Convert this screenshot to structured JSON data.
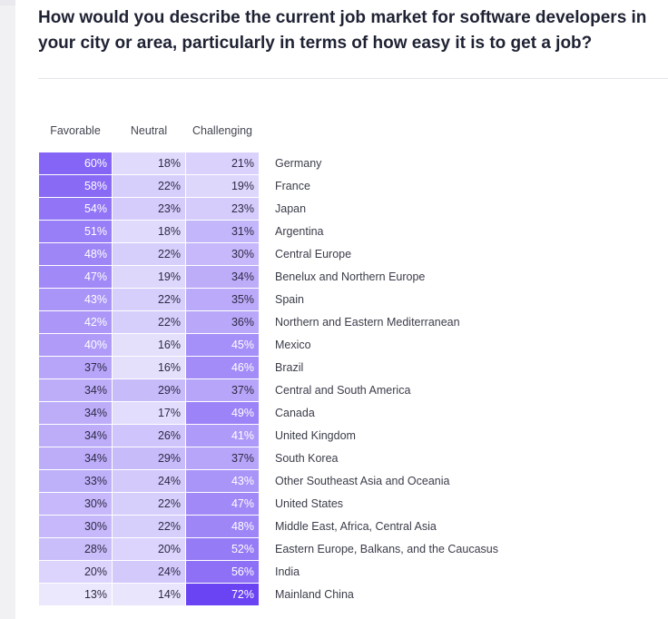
{
  "title": "How would you describe the current job market for software developers in your city or area, particularly in terms of how easy it is to get a job?",
  "colors": {
    "base": "#ebe8fd",
    "full": "#6a43f3"
  },
  "chart_data": {
    "type": "table",
    "columns": [
      "Favorable",
      "Neutral",
      "Challenging"
    ],
    "unit": "%",
    "rows": [
      {
        "country": "Germany",
        "values": [
          60,
          18,
          21
        ]
      },
      {
        "country": "France",
        "values": [
          58,
          22,
          19
        ]
      },
      {
        "country": "Japan",
        "values": [
          54,
          23,
          23
        ]
      },
      {
        "country": "Argentina",
        "values": [
          51,
          18,
          31
        ]
      },
      {
        "country": "Central Europe",
        "values": [
          48,
          22,
          30
        ]
      },
      {
        "country": "Benelux and Northern Europe",
        "values": [
          47,
          19,
          34
        ]
      },
      {
        "country": "Spain",
        "values": [
          43,
          22,
          35
        ]
      },
      {
        "country": "Northern and Eastern Mediterranean",
        "values": [
          42,
          22,
          36
        ]
      },
      {
        "country": "Mexico",
        "values": [
          40,
          16,
          45
        ]
      },
      {
        "country": "Brazil",
        "values": [
          37,
          16,
          46
        ]
      },
      {
        "country": "Central and South America",
        "values": [
          34,
          29,
          37
        ]
      },
      {
        "country": "Canada",
        "values": [
          34,
          17,
          49
        ]
      },
      {
        "country": "United Kingdom",
        "values": [
          34,
          26,
          41
        ]
      },
      {
        "country": "South Korea",
        "values": [
          34,
          29,
          37
        ]
      },
      {
        "country": "Other Southeast Asia and Oceania",
        "values": [
          33,
          24,
          43
        ]
      },
      {
        "country": "United States",
        "values": [
          30,
          22,
          47
        ]
      },
      {
        "country": "Middle East, Africa, Central Asia",
        "values": [
          30,
          22,
          48
        ]
      },
      {
        "country": "Eastern Europe, Balkans, and the Caucasus",
        "values": [
          28,
          20,
          52
        ]
      },
      {
        "country": "India",
        "values": [
          20,
          24,
          56
        ]
      },
      {
        "country": "Mainland China",
        "values": [
          13,
          14,
          72
        ]
      }
    ]
  }
}
